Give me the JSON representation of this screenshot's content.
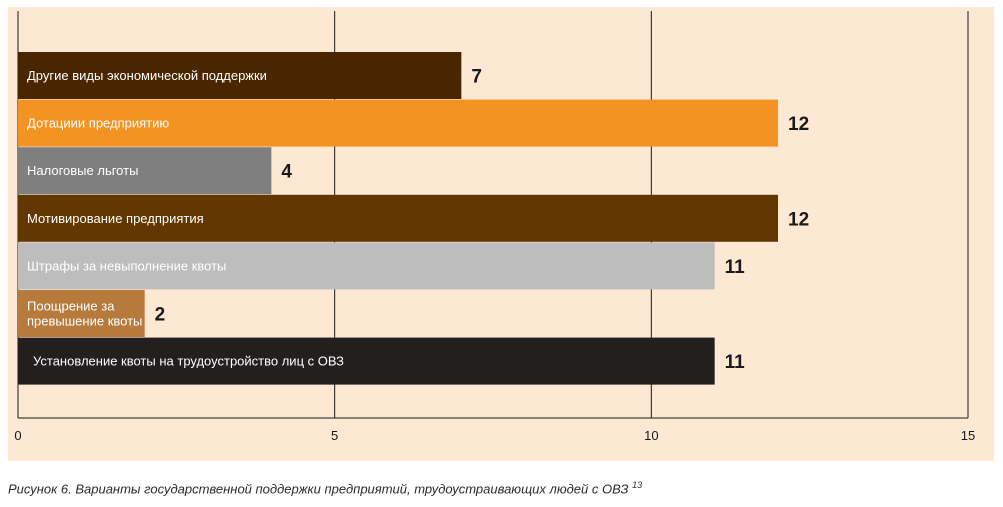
{
  "chart_data": {
    "type": "bar",
    "orientation": "horizontal",
    "categories": [
      "Другие виды экономической поддержки",
      "Дотациии предприятию",
      "Налоговые льготы",
      "Мотивирование предприятия",
      "Штрафы за невыполнение квоты",
      "Поощрение за превышение квоты",
      "Установление квоты на трудоустройство лиц с ОВЗ"
    ],
    "values": [
      7,
      12,
      4,
      12,
      11,
      2,
      11
    ],
    "colors": [
      "#4a2600",
      "#f39322",
      "#7f7f80",
      "#633800",
      "#bdbdbd",
      "#b57a3c",
      "#231f1f"
    ],
    "label_colors": [
      "#ffffff",
      "#ffffff",
      "#ffffff",
      "#ffffff",
      "#ffffff",
      "#ffffff",
      "#ffffff"
    ],
    "xlim": [
      0,
      15
    ],
    "xticks": [
      "0",
      "5",
      "10",
      "15"
    ],
    "grid": true,
    "background": "#fce8d3"
  },
  "caption": {
    "text": "Рисунок 6. Варианты государственной поддержки предприятий, трудоустраивающих людей с ОВЗ",
    "footnote": "13"
  }
}
